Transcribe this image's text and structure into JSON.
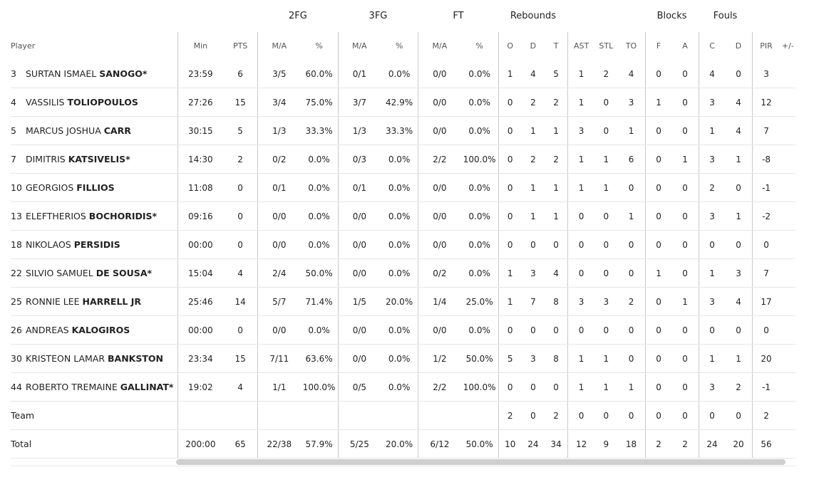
{
  "groups": {
    "fg2": "2FG",
    "fg3": "3FG",
    "ft": "FT",
    "rebounds": "Rebounds",
    "blocks": "Blocks",
    "fouls": "Fouls"
  },
  "columns": [
    "Player",
    "Min",
    "PTS",
    "M/A",
    "%",
    "M/A",
    "%",
    "M/A",
    "%",
    "O",
    "D",
    "T",
    "AST",
    "STL",
    "TO",
    "F",
    "A",
    "C",
    "D",
    "PIR",
    "+/-"
  ],
  "players": [
    {
      "num": "3",
      "first": "SURTAN ISMAEL",
      "last": "SANOGO*",
      "stats": [
        "23:59",
        "6",
        "3/5",
        "60.0%",
        "0/1",
        "0.0%",
        "0/0",
        "0.0%",
        "1",
        "4",
        "5",
        "1",
        "2",
        "4",
        "0",
        "0",
        "4",
        "0",
        "3"
      ]
    },
    {
      "num": "4",
      "first": "VASSILIS",
      "last": "TOLIOPOULOS",
      "stats": [
        "27:26",
        "15",
        "3/4",
        "75.0%",
        "3/7",
        "42.9%",
        "0/0",
        "0.0%",
        "0",
        "2",
        "2",
        "1",
        "0",
        "3",
        "1",
        "0",
        "3",
        "4",
        "12"
      ]
    },
    {
      "num": "5",
      "first": "MARCUS JOSHUA",
      "last": "CARR",
      "stats": [
        "30:15",
        "5",
        "1/3",
        "33.3%",
        "1/3",
        "33.3%",
        "0/0",
        "0.0%",
        "0",
        "1",
        "1",
        "3",
        "0",
        "1",
        "0",
        "0",
        "1",
        "4",
        "7"
      ]
    },
    {
      "num": "7",
      "first": "DIMITRIS",
      "last": "KATSIVELIS*",
      "stats": [
        "14:30",
        "2",
        "0/2",
        "0.0%",
        "0/3",
        "0.0%",
        "2/2",
        "100.0%",
        "0",
        "2",
        "2",
        "1",
        "1",
        "6",
        "0",
        "1",
        "3",
        "1",
        "-8"
      ]
    },
    {
      "num": "10",
      "first": "GEORGIOS",
      "last": "FILLIOS",
      "stats": [
        "11:08",
        "0",
        "0/1",
        "0.0%",
        "0/1",
        "0.0%",
        "0/0",
        "0.0%",
        "0",
        "1",
        "1",
        "1",
        "1",
        "0",
        "0",
        "0",
        "2",
        "0",
        "-1"
      ]
    },
    {
      "num": "13",
      "first": "ELEFTHERIOS",
      "last": "BOCHORIDIS*",
      "stats": [
        "09:16",
        "0",
        "0/0",
        "0.0%",
        "0/0",
        "0.0%",
        "0/0",
        "0.0%",
        "0",
        "1",
        "1",
        "0",
        "0",
        "1",
        "0",
        "0",
        "3",
        "1",
        "-2"
      ]
    },
    {
      "num": "18",
      "first": "NIKOLAOS",
      "last": "PERSIDIS",
      "stats": [
        "00:00",
        "0",
        "0/0",
        "0.0%",
        "0/0",
        "0.0%",
        "0/0",
        "0.0%",
        "0",
        "0",
        "0",
        "0",
        "0",
        "0",
        "0",
        "0",
        "0",
        "0",
        "0"
      ]
    },
    {
      "num": "22",
      "first": "SILVIO SAMUEL",
      "last": "DE SOUSA*",
      "stats": [
        "15:04",
        "4",
        "2/4",
        "50.0%",
        "0/0",
        "0.0%",
        "0/2",
        "0.0%",
        "1",
        "3",
        "4",
        "0",
        "0",
        "0",
        "1",
        "0",
        "1",
        "3",
        "7"
      ]
    },
    {
      "num": "25",
      "first": "RONNIE LEE",
      "last": "HARRELL JR",
      "stats": [
        "25:46",
        "14",
        "5/7",
        "71.4%",
        "1/5",
        "20.0%",
        "1/4",
        "25.0%",
        "1",
        "7",
        "8",
        "3",
        "3",
        "2",
        "0",
        "1",
        "3",
        "4",
        "17"
      ]
    },
    {
      "num": "26",
      "first": "ANDREAS",
      "last": "KALOGIROS",
      "stats": [
        "00:00",
        "0",
        "0/0",
        "0.0%",
        "0/0",
        "0.0%",
        "0/0",
        "0.0%",
        "0",
        "0",
        "0",
        "0",
        "0",
        "0",
        "0",
        "0",
        "0",
        "0",
        "0"
      ]
    },
    {
      "num": "30",
      "first": "KRISTEON LAMAR",
      "last": "BANKSTON",
      "stats": [
        "23:34",
        "15",
        "7/11",
        "63.6%",
        "0/0",
        "0.0%",
        "1/2",
        "50.0%",
        "5",
        "3",
        "8",
        "1",
        "1",
        "0",
        "0",
        "0",
        "1",
        "1",
        "20"
      ]
    },
    {
      "num": "44",
      "first": "ROBERTO TREMAINE",
      "last": "GALLINAT*",
      "stats": [
        "19:02",
        "4",
        "1/1",
        "100.0%",
        "0/5",
        "0.0%",
        "2/2",
        "100.0%",
        "0",
        "0",
        "0",
        "1",
        "1",
        "1",
        "0",
        "0",
        "3",
        "2",
        "-1"
      ]
    }
  ],
  "team": {
    "label": "Team",
    "stats": [
      "",
      "",
      "",
      "",
      "",
      "",
      "",
      "",
      "2",
      "0",
      "2",
      "0",
      "0",
      "0",
      "0",
      "0",
      "0",
      "0",
      "2"
    ]
  },
  "total": {
    "label": "Total",
    "stats": [
      "200:00",
      "65",
      "22/38",
      "57.9%",
      "5/25",
      "20.0%",
      "6/12",
      "50.0%",
      "10",
      "24",
      "34",
      "12",
      "9",
      "18",
      "2",
      "2",
      "24",
      "20",
      "56"
    ]
  }
}
